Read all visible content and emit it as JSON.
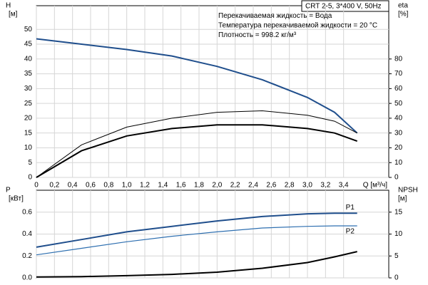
{
  "chart_data": [
    {
      "type": "line",
      "annotations": [
        "CRT 2-5, 3*400 V, 50Hz",
        "Перекачиваемая жидкость = Вода",
        "Температура перекачиваемой жидкости = 20 °C",
        "Плотность = 998.2 кг/м³"
      ],
      "ylabel": [
        "H",
        "[м]"
      ],
      "y2label": [
        "eta",
        "[%]"
      ],
      "xlabel": "Q [м³/ч]",
      "x": [
        0,
        0.5,
        1.0,
        1.5,
        2.0,
        2.5,
        3.0,
        3.3,
        3.55
      ],
      "series": [
        {
          "color": "#1f4e8c",
          "values": [
            46.8,
            45,
            43.2,
            41,
            37.5,
            33,
            27,
            22,
            15
          ]
        },
        {
          "color": "#000000",
          "axis": "y2",
          "values": [
            0,
            22,
            34,
            40,
            44,
            45,
            42,
            38,
            30
          ]
        },
        {
          "color": "#000000",
          "axis": "y2",
          "values": [
            0,
            18,
            28,
            33,
            35.5,
            35.5,
            33,
            30,
            24.5
          ]
        }
      ],
      "xlim": [
        0,
        3.9
      ],
      "xticks": [
        0,
        {
          "value": 0.2,
          "label": "0,2"
        },
        {
          "value": 0.4,
          "label": "0,4"
        },
        {
          "value": 0.6,
          "label": "0,6"
        },
        {
          "value": 0.8,
          "label": "0,8"
        },
        {
          "value": 1.0,
          "label": "1,0"
        },
        {
          "value": 1.2,
          "label": "1,2"
        },
        {
          "value": 1.4,
          "label": "1,4"
        },
        {
          "value": 1.6,
          "label": "1,6"
        },
        {
          "value": 1.8,
          "label": "1,8"
        },
        {
          "value": 2.0,
          "label": "2,0"
        },
        {
          "value": 2.2,
          "label": "2,2"
        },
        {
          "value": 2.4,
          "label": "2,4"
        },
        {
          "value": 2.6,
          "label": "2,6"
        },
        {
          "value": 2.8,
          "label": "2,8"
        },
        {
          "value": 3.0,
          "label": "3,0"
        },
        {
          "value": 3.2,
          "label": "3,2"
        },
        {
          "value": 3.4,
          "label": "3,4"
        }
      ],
      "ylim": [
        0,
        58
      ],
      "yticks": [
        0,
        5,
        10,
        15,
        20,
        25,
        30,
        35,
        40,
        45,
        50
      ],
      "y2lim": [
        0,
        116
      ],
      "y2ticks": [
        0,
        10,
        20,
        30,
        40,
        50,
        60,
        70,
        80
      ],
      "grid": true
    },
    {
      "type": "line",
      "ylabel": [
        "P",
        "[кВт]"
      ],
      "y2label": [
        "NPSH",
        "[м]"
      ],
      "x": [
        0,
        0.5,
        1.0,
        1.5,
        2.0,
        2.5,
        3.0,
        3.3,
        3.55
      ],
      "series": [
        {
          "name": "P1",
          "color": "#1f4e8c",
          "values": [
            0.28,
            0.35,
            0.42,
            0.47,
            0.52,
            0.56,
            0.585,
            0.59,
            0.59
          ]
        },
        {
          "name": "P2",
          "color": "#2e6fb0",
          "values": [
            0.21,
            0.27,
            0.33,
            0.38,
            0.42,
            0.455,
            0.47,
            0.475,
            0.475
          ]
        },
        {
          "color": "#000000",
          "axis": "y2",
          "values": [
            0.2,
            0.3,
            0.5,
            0.8,
            1.3,
            2.2,
            3.5,
            4.8,
            6.0
          ]
        }
      ],
      "xlim": [
        0,
        3.9
      ],
      "xticks": [
        0,
        0.2,
        0.4,
        0.6,
        0.8,
        1.0,
        1.2,
        1.4,
        1.6,
        1.8,
        2.0,
        2.2,
        2.4,
        2.6,
        2.8,
        3.0,
        3.2,
        3.4
      ],
      "xtick_labels": false,
      "ylim": [
        0,
        0.8
      ],
      "yticks": [
        {
          "value": 0,
          "label": "0.0"
        },
        {
          "value": 0.2,
          "label": "0.2"
        },
        {
          "value": 0.4,
          "label": "0.4"
        },
        {
          "value": 0.6,
          "label": "0.6"
        }
      ],
      "y2lim": [
        0,
        20
      ],
      "y2ticks": [
        0,
        5,
        10,
        15
      ],
      "grid": true
    }
  ]
}
